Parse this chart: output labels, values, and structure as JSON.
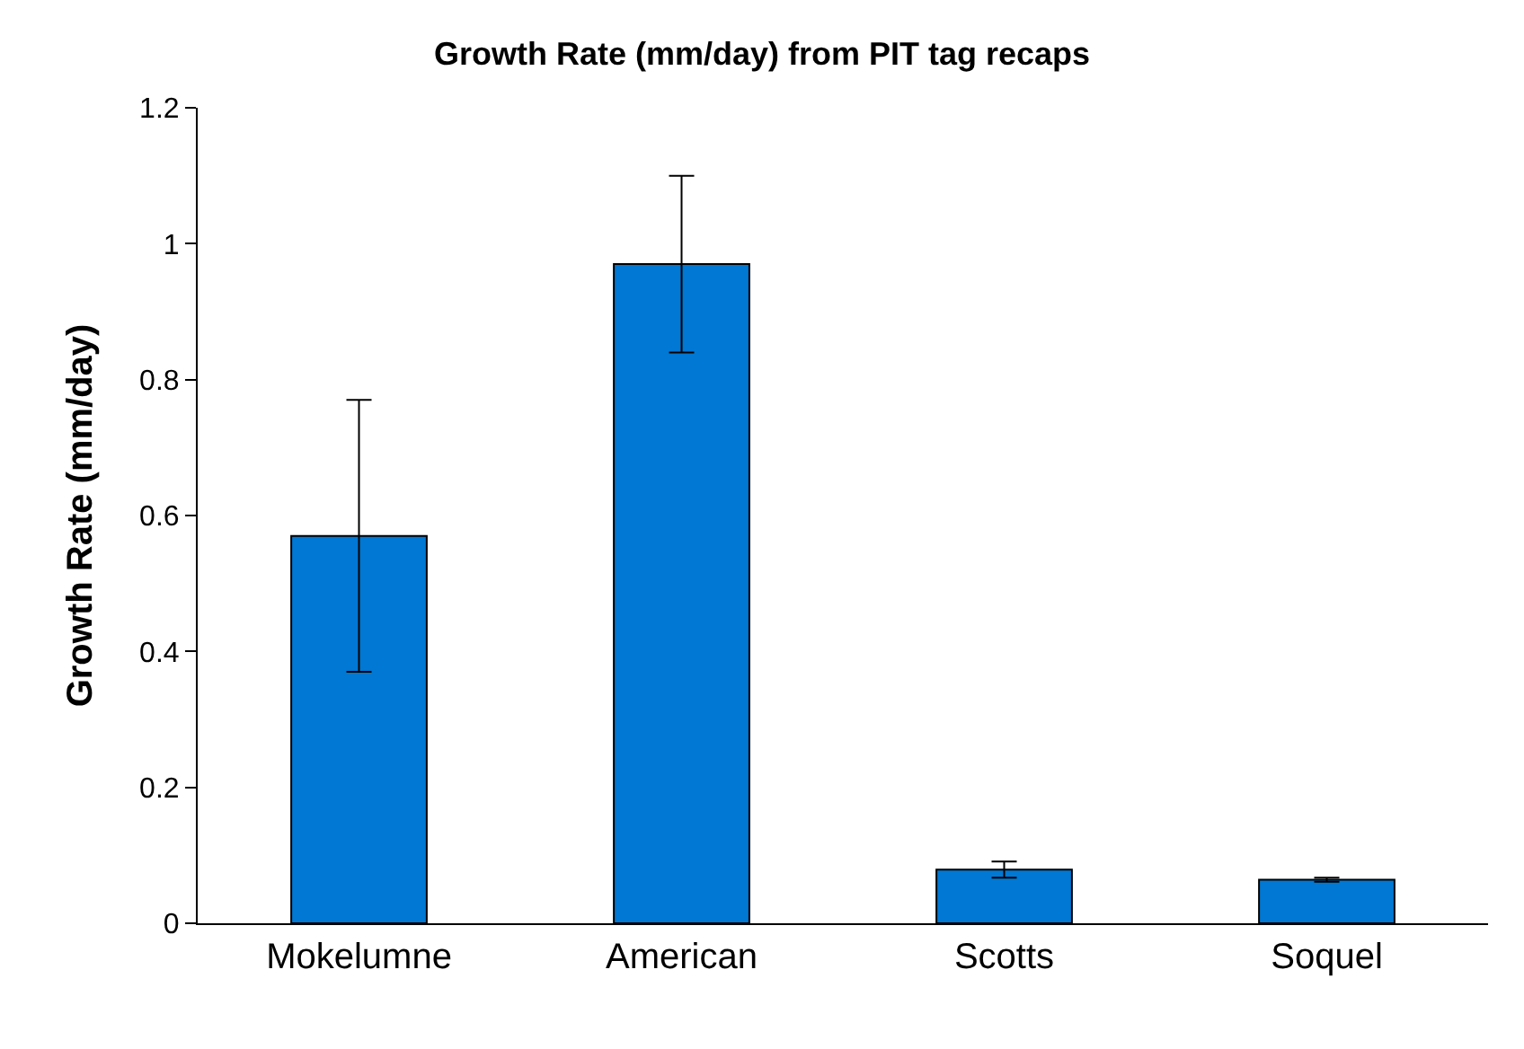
{
  "chart_data": {
    "type": "bar",
    "title": "Growth Rate (mm/day) from PIT tag recaps",
    "ylabel": "Growth Rate (mm/day)",
    "categories": [
      "Mokelumne",
      "American",
      "Scotts",
      "Soquel"
    ],
    "values": [
      0.57,
      0.97,
      0.079,
      0.064
    ],
    "errors": [
      0.2,
      0.13,
      0.012,
      0.003
    ],
    "color": "#0078d4",
    "ylim": [
      0,
      1.2
    ],
    "yticks": [
      0,
      0.2,
      0.4,
      0.6,
      0.8,
      1,
      1.2
    ]
  }
}
